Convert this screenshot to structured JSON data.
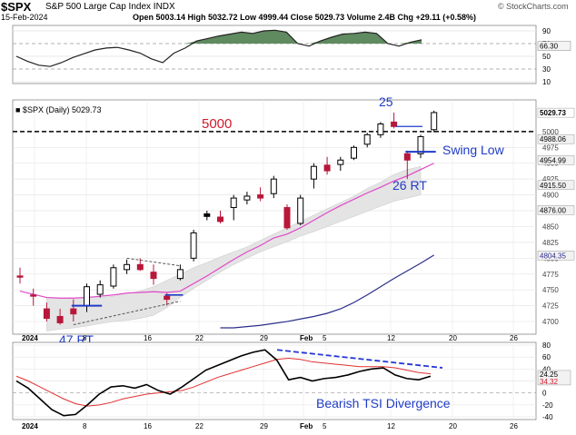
{
  "header": {
    "ticker": "$SPX",
    "name": "S&P 500 Large Cap Index",
    "exchange": "INDX",
    "date": "15-Feb-2024",
    "ohlc": "Open 5003.14  High 5032.72  Low 4999.44  Close 5029.73  Volume 2.4B  Chg +29.11 (+0.58%)",
    "copyright": "© StockCharts.com"
  },
  "chart_data": [
    {
      "type": "line",
      "panel": "top-indicator",
      "series": [
        {
          "values": [
            50,
            42,
            36,
            34,
            40,
            48,
            54,
            60,
            63,
            64,
            60,
            55,
            46,
            40,
            55,
            63,
            74,
            78,
            82,
            85,
            88,
            86,
            90,
            91,
            88,
            70,
            66,
            74,
            80,
            85,
            86,
            88,
            86,
            70,
            66,
            72,
            76
          ]
        }
      ],
      "yticks": [
        90,
        70,
        50,
        30,
        10
      ],
      "last_label": "66.30",
      "fill_above": 70,
      "fill_color": "#4f7d4f"
    },
    {
      "type": "candlestick",
      "panel": "price",
      "legend": "$SPX (Daily) 5029.73",
      "x_labels": [
        "2024",
        "8",
        "16",
        "22",
        "29",
        "Feb",
        "5",
        "12",
        "20",
        "26"
      ],
      "yticks": [
        5000,
        4975,
        4950,
        4925,
        4900,
        4875,
        4850,
        4825,
        4800,
        4775,
        4750,
        4725,
        4700
      ],
      "ylim": [
        4680,
        5050
      ],
      "candles": [
        {
          "o": 4772,
          "h": 4785,
          "l": 4760,
          "c": 4770,
          "up": false
        },
        {
          "o": 4742,
          "h": 4752,
          "l": 4725,
          "c": 4740,
          "up": false
        },
        {
          "o": 4720,
          "h": 4730,
          "l": 4700,
          "c": 4705,
          "up": false
        },
        {
          "o": 4708,
          "h": 4720,
          "l": 4695,
          "c": 4698,
          "up": false
        },
        {
          "o": 4720,
          "h": 4735,
          "l": 4700,
          "c": 4712,
          "up": false
        },
        {
          "o": 4725,
          "h": 4760,
          "l": 4715,
          "c": 4755,
          "up": true
        },
        {
          "o": 4743,
          "h": 4765,
          "l": 4738,
          "c": 4758,
          "up": true
        },
        {
          "o": 4756,
          "h": 4790,
          "l": 4752,
          "c": 4785,
          "up": true
        },
        {
          "o": 4782,
          "h": 4798,
          "l": 4775,
          "c": 4790,
          "up": true
        },
        {
          "o": 4790,
          "h": 4800,
          "l": 4780,
          "c": 4782,
          "up": false,
          "filled": true
        },
        {
          "o": 4778,
          "h": 4790,
          "l": 4758,
          "c": 4768,
          "up": false
        },
        {
          "o": 4735,
          "h": 4745,
          "l": 4725,
          "c": 4740,
          "up": false
        },
        {
          "o": 4768,
          "h": 4790,
          "l": 4765,
          "c": 4782,
          "up": true
        },
        {
          "o": 4800,
          "h": 4845,
          "l": 4795,
          "c": 4840,
          "up": true
        },
        {
          "o": 4866,
          "h": 4875,
          "l": 4860,
          "c": 4870,
          "up": true,
          "filled": true
        },
        {
          "o": 4865,
          "h": 4875,
          "l": 4855,
          "c": 4858,
          "up": false,
          "filled": true
        },
        {
          "o": 4880,
          "h": 4900,
          "l": 4860,
          "c": 4895,
          "up": true
        },
        {
          "o": 4892,
          "h": 4905,
          "l": 4885,
          "c": 4898,
          "up": true
        },
        {
          "o": 4900,
          "h": 4912,
          "l": 4890,
          "c": 4895,
          "up": false
        },
        {
          "o": 4902,
          "h": 4930,
          "l": 4895,
          "c": 4925,
          "up": true
        },
        {
          "o": 4880,
          "h": 4885,
          "l": 4845,
          "c": 4848,
          "up": false
        },
        {
          "o": 4855,
          "h": 4900,
          "l": 4852,
          "c": 4895,
          "up": true
        },
        {
          "o": 4925,
          "h": 4950,
          "l": 4910,
          "c": 4945,
          "up": true
        },
        {
          "o": 4947,
          "h": 4960,
          "l": 4932,
          "c": 4938,
          "up": false
        },
        {
          "o": 4948,
          "h": 4960,
          "l": 4938,
          "c": 4955,
          "up": true
        },
        {
          "o": 4958,
          "h": 4978,
          "l": 4955,
          "c": 4975,
          "up": true
        },
        {
          "o": 4980,
          "h": 4998,
          "l": 4975,
          "c": 4995,
          "up": true
        },
        {
          "o": 4995,
          "h": 5015,
          "l": 4990,
          "c": 5012,
          "up": true
        },
        {
          "o": 5008,
          "h": 5030,
          "l": 5005,
          "c": 5015,
          "up": false
        },
        {
          "o": 4965,
          "h": 4970,
          "l": 4925,
          "c": 4955,
          "up": false
        },
        {
          "o": 4965,
          "h": 4995,
          "l": 4958,
          "c": 4992,
          "up": true
        },
        {
          "o": 5003,
          "h": 5033,
          "l": 4999,
          "c": 5030,
          "up": true
        }
      ],
      "ma_pink": [
        4748,
        4743,
        4738,
        4737,
        4737,
        4738,
        4740,
        4742,
        4745,
        4746,
        4747,
        4746,
        4748,
        4760,
        4772,
        4785,
        4798,
        4810,
        4820,
        4832,
        4838,
        4848,
        4860,
        4872,
        4883,
        4893,
        4903,
        4912,
        4922,
        4930,
        4940,
        4950
      ],
      "ma_navy": [
        4690,
        4690,
        4692,
        4694,
        4697,
        4700,
        4704,
        4708,
        4713,
        4720,
        4730,
        4742,
        4755,
        4768,
        4780,
        4792,
        4805
      ],
      "band_upper": [
        4738,
        4737,
        4737,
        4738,
        4738,
        4740,
        4744,
        4748,
        4755,
        4765,
        4775,
        4785,
        4793,
        4802,
        4810,
        4818,
        4828,
        4838,
        4848,
        4858,
        4868,
        4878,
        4888,
        4898,
        4910,
        4920,
        4932,
        4940,
        4945
      ],
      "band_lower": [
        4685,
        4688,
        4690,
        4693,
        4697,
        4700,
        4702,
        4705,
        4710,
        4722,
        4738,
        4752,
        4765,
        4778,
        4790,
        4800,
        4810,
        4818,
        4826,
        4835,
        4842,
        4850,
        4858,
        4866,
        4874,
        4882,
        4890,
        4895,
        4900
      ],
      "price_labels": [
        "5029.73",
        "4988.06",
        "4954.99",
        "4915.50",
        "4876.00",
        "4804.35"
      ],
      "annotations": {
        "level_5000": "5000",
        "label_25": "25",
        "swing_low": "Swing Low",
        "rt_26": "26 RT",
        "rt_47": "47 RT"
      }
    },
    {
      "type": "line",
      "panel": "tsi",
      "x_labels": [
        "2024",
        "8",
        "16",
        "22",
        "29",
        "Feb",
        "5",
        "12",
        "20",
        "26"
      ],
      "yticks": [
        80,
        60,
        40,
        20,
        0,
        -20,
        -40
      ],
      "series": [
        {
          "values": [
            20,
            8,
            -10,
            -28,
            -38,
            -36,
            -20,
            -2,
            10,
            12,
            8,
            14,
            4,
            -2,
            10,
            24,
            38,
            46,
            54,
            62,
            68,
            72,
            55,
            22,
            26,
            20,
            24,
            26,
            30,
            36,
            40,
            42,
            30,
            24,
            22,
            28
          ]
        },
        {
          "values": [
            28,
            20,
            10,
            0,
            -10,
            -18,
            -22,
            -20,
            -16,
            -10,
            -6,
            -2,
            0,
            2,
            4,
            10,
            18,
            26,
            32,
            38,
            44,
            50,
            56,
            58,
            56,
            52,
            50,
            48,
            46,
            44,
            44,
            44,
            42,
            38,
            34,
            32
          ]
        }
      ],
      "last_labels": [
        "24.25",
        "34.32"
      ],
      "annotation": "Bearish TSI Divergence"
    }
  ]
}
